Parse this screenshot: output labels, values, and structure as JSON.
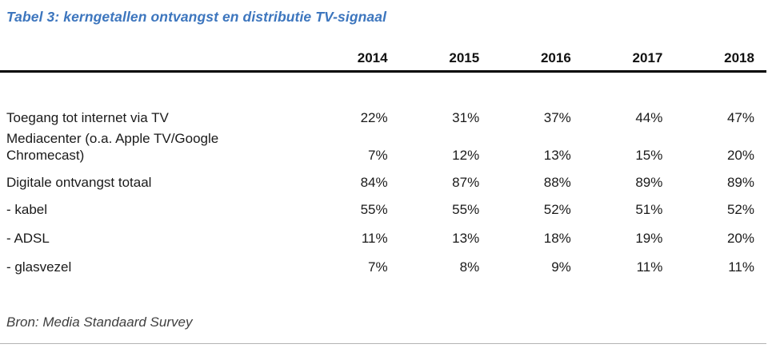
{
  "page": {
    "title": "Tabel 3: kerngetallen ontvangst en distributie TV-signaal",
    "source_note": "Bron: Media Standaard Survey"
  },
  "colors": {
    "title_blue": "#3d76be",
    "body_text": "#1a1a1a",
    "header_rule": "#000000",
    "bottom_rule": "#b3b3b3"
  },
  "table": {
    "columns": [
      "2014",
      "2015",
      "2016",
      "2017",
      "2018"
    ],
    "rows": [
      {
        "label": "Toegang tot internet via TV",
        "values": [
          "22%",
          "31%",
          "37%",
          "44%",
          "47%"
        ]
      },
      {
        "label": "Mediacenter (o.a. Apple TV/Google Chromecast)",
        "values": [
          "7%",
          "12%",
          "13%",
          "15%",
          "20%"
        ]
      },
      {
        "label": "Digitale ontvangst totaal",
        "values": [
          "84%",
          "87%",
          "88%",
          "89%",
          "89%"
        ]
      },
      {
        "label": "- kabel",
        "values": [
          "55%",
          "55%",
          "52%",
          "51%",
          "52%"
        ]
      },
      {
        "label": "- ADSL",
        "values": [
          "11%",
          "13%",
          "18%",
          "19%",
          "20%"
        ]
      },
      {
        "label": "- glasvezel",
        "values": [
          "7%",
          "8%",
          "9%",
          "11%",
          "11%"
        ]
      }
    ]
  }
}
